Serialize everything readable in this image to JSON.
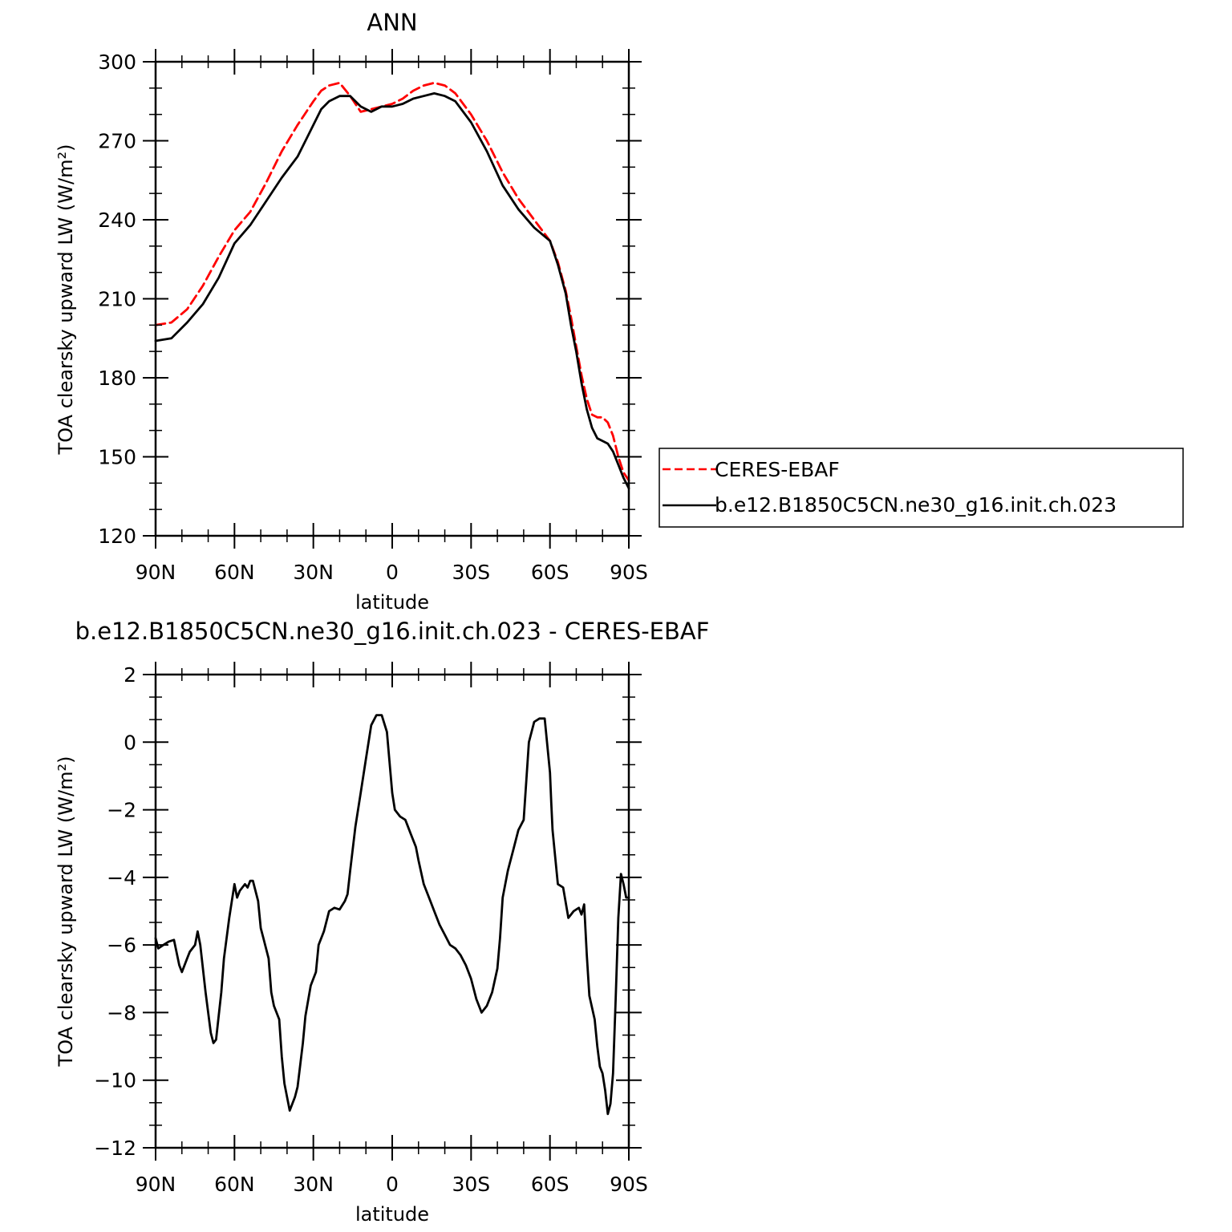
{
  "colors": {
    "ceres": "#ff0000",
    "model": "#000000"
  },
  "chart_data": [
    {
      "type": "line",
      "title": "ANN",
      "xlabel": "latitude",
      "ylabel": "TOA clearsky upward LW (W/m²)",
      "xlim": [
        90,
        -90
      ],
      "ylim": [
        120,
        300
      ],
      "x_ticks": [
        90,
        60,
        30,
        0,
        -30,
        -60,
        -90
      ],
      "x_tick_labels": [
        "90N",
        "60N",
        "30N",
        "0",
        "30S",
        "60S",
        "90S"
      ],
      "y_ticks": [
        120,
        150,
        180,
        210,
        240,
        270,
        300
      ],
      "y_tick_labels": [
        "120",
        "150",
        "180",
        "210",
        "240",
        "270",
        "300"
      ],
      "legend": {
        "placement": "right",
        "entries": [
          "CERES-EBAF",
          "b.e12.B1850C5CN.ne30_g16.init.ch.023"
        ]
      },
      "series": [
        {
          "name": "CERES-EBAF",
          "style": "dashed",
          "color": "#ff0000",
          "x": [
            90,
            84,
            78,
            72,
            66,
            60,
            54,
            48,
            42,
            36,
            30,
            27,
            24,
            20,
            16,
            12,
            8,
            4,
            0,
            -4,
            -8,
            -12,
            -16,
            -20,
            -24,
            -30,
            -36,
            -42,
            -48,
            -54,
            -60,
            -63,
            -66,
            -68,
            -70,
            -72,
            -74,
            -76,
            -78,
            -80,
            -82,
            -84,
            -86,
            -88,
            -90
          ],
          "y": [
            200,
            201,
            206,
            215,
            226,
            236,
            243,
            254,
            266,
            276,
            285,
            289,
            291,
            292,
            287,
            281,
            282,
            283,
            284,
            286,
            289,
            291,
            292,
            291,
            288,
            280,
            270,
            258,
            248,
            240,
            232,
            224,
            213,
            203,
            192,
            181,
            172,
            166,
            165,
            165,
            163,
            158,
            150,
            144,
            141
          ]
        },
        {
          "name": "b.e12.B1850C5CN.ne30_g16.init.ch.023",
          "style": "solid",
          "color": "#000000",
          "x": [
            90,
            84,
            78,
            72,
            66,
            60,
            54,
            48,
            42,
            36,
            30,
            27,
            24,
            20,
            16,
            12,
            8,
            4,
            0,
            -4,
            -8,
            -12,
            -16,
            -20,
            -24,
            -30,
            -36,
            -42,
            -48,
            -54,
            -60,
            -63,
            -66,
            -68,
            -70,
            -72,
            -74,
            -76,
            -78,
            -80,
            -82,
            -84,
            -86,
            -88,
            -90
          ],
          "y": [
            194,
            195,
            201,
            208,
            218,
            231,
            238,
            247,
            256,
            264,
            276,
            282,
            285,
            287,
            287,
            283,
            281,
            283,
            283,
            284,
            286,
            287,
            288,
            287,
            285,
            277,
            266,
            253,
            244,
            237,
            232,
            223,
            212,
            200,
            190,
            178,
            168,
            161,
            157,
            156,
            155,
            152,
            147,
            142,
            138
          ]
        }
      ]
    },
    {
      "type": "line",
      "title": "b.e12.B1850C5CN.ne30_g16.init.ch.023 - CERES-EBAF",
      "xlabel": "latitude",
      "ylabel": "TOA clearsky upward LW (W/m²)",
      "xlim": [
        90,
        -90
      ],
      "ylim": [
        -12,
        2
      ],
      "x_ticks": [
        90,
        60,
        30,
        0,
        -30,
        -60,
        -90
      ],
      "x_tick_labels": [
        "90N",
        "60N",
        "30N",
        "0",
        "30S",
        "60S",
        "90S"
      ],
      "y_ticks": [
        -12,
        -10,
        -8,
        -6,
        -4,
        -2,
        0,
        2
      ],
      "y_tick_labels": [
        "−12",
        "−10",
        "−8",
        "−6",
        "−4",
        "−2",
        "0",
        "2"
      ],
      "series": [
        {
          "style": "solid",
          "color": "#000000",
          "x": [
            90,
            89,
            87,
            85,
            83,
            81,
            80,
            78,
            77,
            75,
            74,
            73,
            71,
            69,
            68,
            67,
            65,
            64,
            62,
            60,
            59,
            58,
            56,
            55,
            54,
            53,
            51,
            50,
            49,
            47,
            46,
            45,
            43,
            42,
            41,
            39,
            37,
            36,
            34,
            33,
            31,
            29,
            28,
            26,
            24,
            22,
            20,
            18,
            17,
            16,
            14,
            12,
            10,
            8,
            6,
            4,
            2,
            1,
            0,
            -1,
            -3,
            -5,
            -7,
            -9,
            -10,
            -12,
            -14,
            -16,
            -18,
            -20,
            -22,
            -24,
            -26,
            -28,
            -30,
            -32,
            -34,
            -36,
            -38,
            -40,
            -41,
            -42,
            -44,
            -46,
            -48,
            -50,
            -52,
            -54,
            -56,
            -58,
            -60,
            -60.5,
            -61,
            -62,
            -63,
            -65,
            -67,
            -68,
            -69,
            -71,
            -72,
            -73,
            -74,
            -75,
            -77,
            -78,
            -79,
            -80,
            -81,
            -82,
            -83,
            -84,
            -85,
            -86,
            -87,
            -88,
            -89,
            -90
          ],
          "y": [
            -5.8,
            -6.1,
            -6.0,
            -5.9,
            -5.85,
            -6.6,
            -6.8,
            -6.4,
            -6.2,
            -6.0,
            -5.6,
            -6.0,
            -7.4,
            -8.6,
            -8.9,
            -8.8,
            -7.4,
            -6.4,
            -5.2,
            -4.2,
            -4.6,
            -4.4,
            -4.2,
            -4.3,
            -4.1,
            -4.1,
            -4.7,
            -5.5,
            -5.8,
            -6.4,
            -7.4,
            -7.8,
            -8.2,
            -9.3,
            -10.1,
            -10.9,
            -10.5,
            -10.2,
            -8.9,
            -8.1,
            -7.2,
            -6.8,
            -6.0,
            -5.6,
            -5.0,
            -4.9,
            -4.95,
            -4.7,
            -4.5,
            -3.8,
            -2.5,
            -1.5,
            -0.5,
            0.5,
            0.8,
            0.8,
            0.3,
            -0.6,
            -1.5,
            -2.0,
            -2.2,
            -2.3,
            -2.7,
            -3.1,
            -3.5,
            -4.2,
            -4.6,
            -5.0,
            -5.4,
            -5.7,
            -6.0,
            -6.1,
            -6.3,
            -6.6,
            -7.0,
            -7.6,
            -8.0,
            -7.8,
            -7.4,
            -6.7,
            -5.8,
            -4.6,
            -3.8,
            -3.2,
            -2.6,
            -2.3,
            0.0,
            0.6,
            0.7,
            0.7,
            -0.9,
            -1.8,
            -2.6,
            -3.4,
            -4.2,
            -4.3,
            -5.2,
            -5.1,
            -5.0,
            -4.9,
            -5.1,
            -4.8,
            -6.3,
            -7.5,
            -8.2,
            -9.0,
            -9.6,
            -9.8,
            -10.3,
            -11.0,
            -10.7,
            -9.8,
            -7.6,
            -5.2,
            -3.9,
            -4.2,
            -4.6,
            -4.6
          ]
        }
      ]
    }
  ]
}
